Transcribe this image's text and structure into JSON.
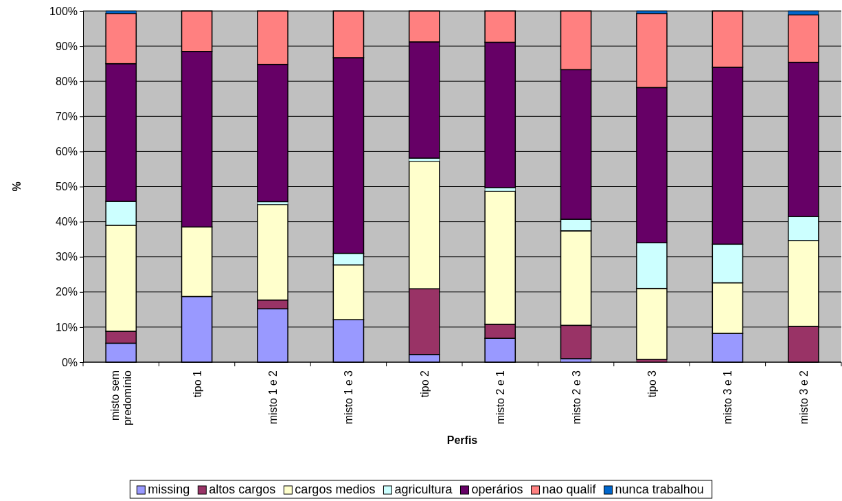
{
  "chart_data": {
    "type": "bar",
    "stacked": true,
    "xlabel": "Perfis",
    "ylabel": "%",
    "categories": [
      "misto sem predomínio",
      "tipo 1",
      "misto 1 e 2",
      "misto 1 e 3",
      "tipo 2",
      "misto 2 e 1",
      "misto 2 e 3",
      "tipo 3",
      "misto 3 e 1",
      "misto 3 e 2"
    ],
    "series": [
      {
        "name": "missing",
        "color": "#9999ff",
        "values": [
          5.4,
          18.7,
          15.2,
          12.1,
          2.2,
          6.8,
          1.0,
          0,
          8.2,
          0
        ]
      },
      {
        "name": "altos cargos",
        "color": "#993366",
        "values": [
          3.4,
          0,
          2.5,
          0,
          18.7,
          4.0,
          9.5,
          0.8,
          0,
          10.2
        ]
      },
      {
        "name": "cargos medios",
        "color": "#ffffcc",
        "values": [
          30.2,
          19.8,
          27.2,
          15.6,
          36.3,
          37.9,
          26.9,
          20.2,
          14.4,
          24.4
        ]
      },
      {
        "name": "agricultura",
        "color": "#ccffff",
        "values": [
          6.8,
          0,
          0.8,
          3.3,
          0.9,
          1.0,
          3.3,
          13.0,
          11.0,
          6.9
        ]
      },
      {
        "name": "operários",
        "color": "#660066",
        "values": [
          39.2,
          50.0,
          39.1,
          55.7,
          33.1,
          41.4,
          42.6,
          44.2,
          50.4,
          43.9
        ]
      },
      {
        "name": "nao qualif",
        "color": "#ff8080",
        "values": [
          14.3,
          11.5,
          15.2,
          13.3,
          8.8,
          8.9,
          16.7,
          21.1,
          16.0,
          13.5
        ]
      },
      {
        "name": "nunca trabalhou",
        "color": "#0066cc",
        "values": [
          0.7,
          0,
          0,
          0,
          0,
          0,
          0,
          0.7,
          0,
          1.1
        ]
      }
    ],
    "ylim": [
      0,
      100
    ],
    "yticks": [
      {
        "value": 0,
        "label": "0%"
      },
      {
        "value": 10,
        "label": "10%"
      },
      {
        "value": 20,
        "label": "20%"
      },
      {
        "value": 30,
        "label": "30%"
      },
      {
        "value": 40,
        "label": "40%"
      },
      {
        "value": 50,
        "label": "50%"
      },
      {
        "value": 60,
        "label": "60%"
      },
      {
        "value": 70,
        "label": "70%"
      },
      {
        "value": 80,
        "label": "80%"
      },
      {
        "value": 90,
        "label": "90%"
      },
      {
        "value": 100,
        "label": "100%"
      }
    ],
    "grid": "y",
    "legend": "bottom"
  }
}
